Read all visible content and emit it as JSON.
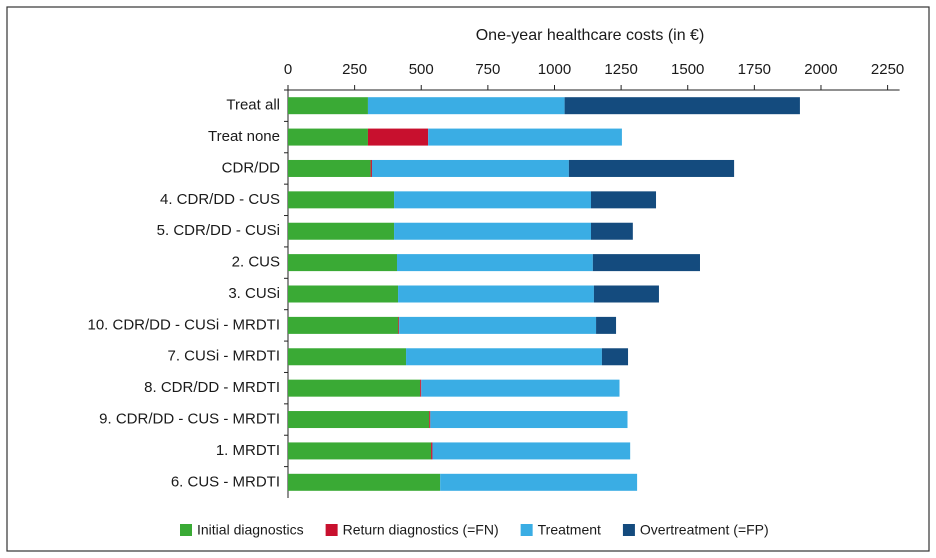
{
  "chart_data": {
    "type": "stacked-barh",
    "title": "One-year healthcare costs (in €)",
    "categories": [
      "Treat all",
      "Treat none",
      "CDR/DD",
      "4. CDR/DD - CUS",
      "5. CDR/DD - CUSi",
      "2. CUS",
      "3. CUSi",
      "10. CDR/DD - CUSi - MRDTI",
      "7. CUSi - MRDTI",
      "8. CDR/DD - MRDTI",
      "9. CDR/DD - CUS - MRDTI",
      "1. MRDTI",
      "6. CUS - MRDTI"
    ],
    "series": [
      {
        "name": "Initial diagnostics",
        "color": "#3aaa35",
        "values": [
          300,
          300,
          310,
          398,
          398,
          409,
          413,
          414,
          443,
          496,
          530,
          537,
          571
        ]
      },
      {
        "name": "Return diagnostics (=FN)",
        "color": "#c8102e",
        "values": [
          0,
          226,
          5,
          0,
          0,
          0,
          0,
          3,
          0,
          4,
          4,
          5,
          0
        ]
      },
      {
        "name": "Treatment",
        "color": "#3aade4",
        "values": [
          738,
          727,
          739,
          739,
          739,
          735,
          735,
          739,
          735,
          744,
          740,
          742,
          739
        ]
      },
      {
        "name": "Overtreatment (=FP)",
        "color": "#144b7e",
        "values": [
          883,
          0,
          620,
          244,
          157,
          402,
          244,
          75,
          98,
          0,
          0,
          0,
          0
        ]
      }
    ],
    "xlim": [
      0,
      2250
    ],
    "xticks": [
      0,
      250,
      500,
      750,
      1000,
      1250,
      1500,
      1750,
      2000,
      2250
    ],
    "grid": false,
    "legend": "bottom"
  }
}
